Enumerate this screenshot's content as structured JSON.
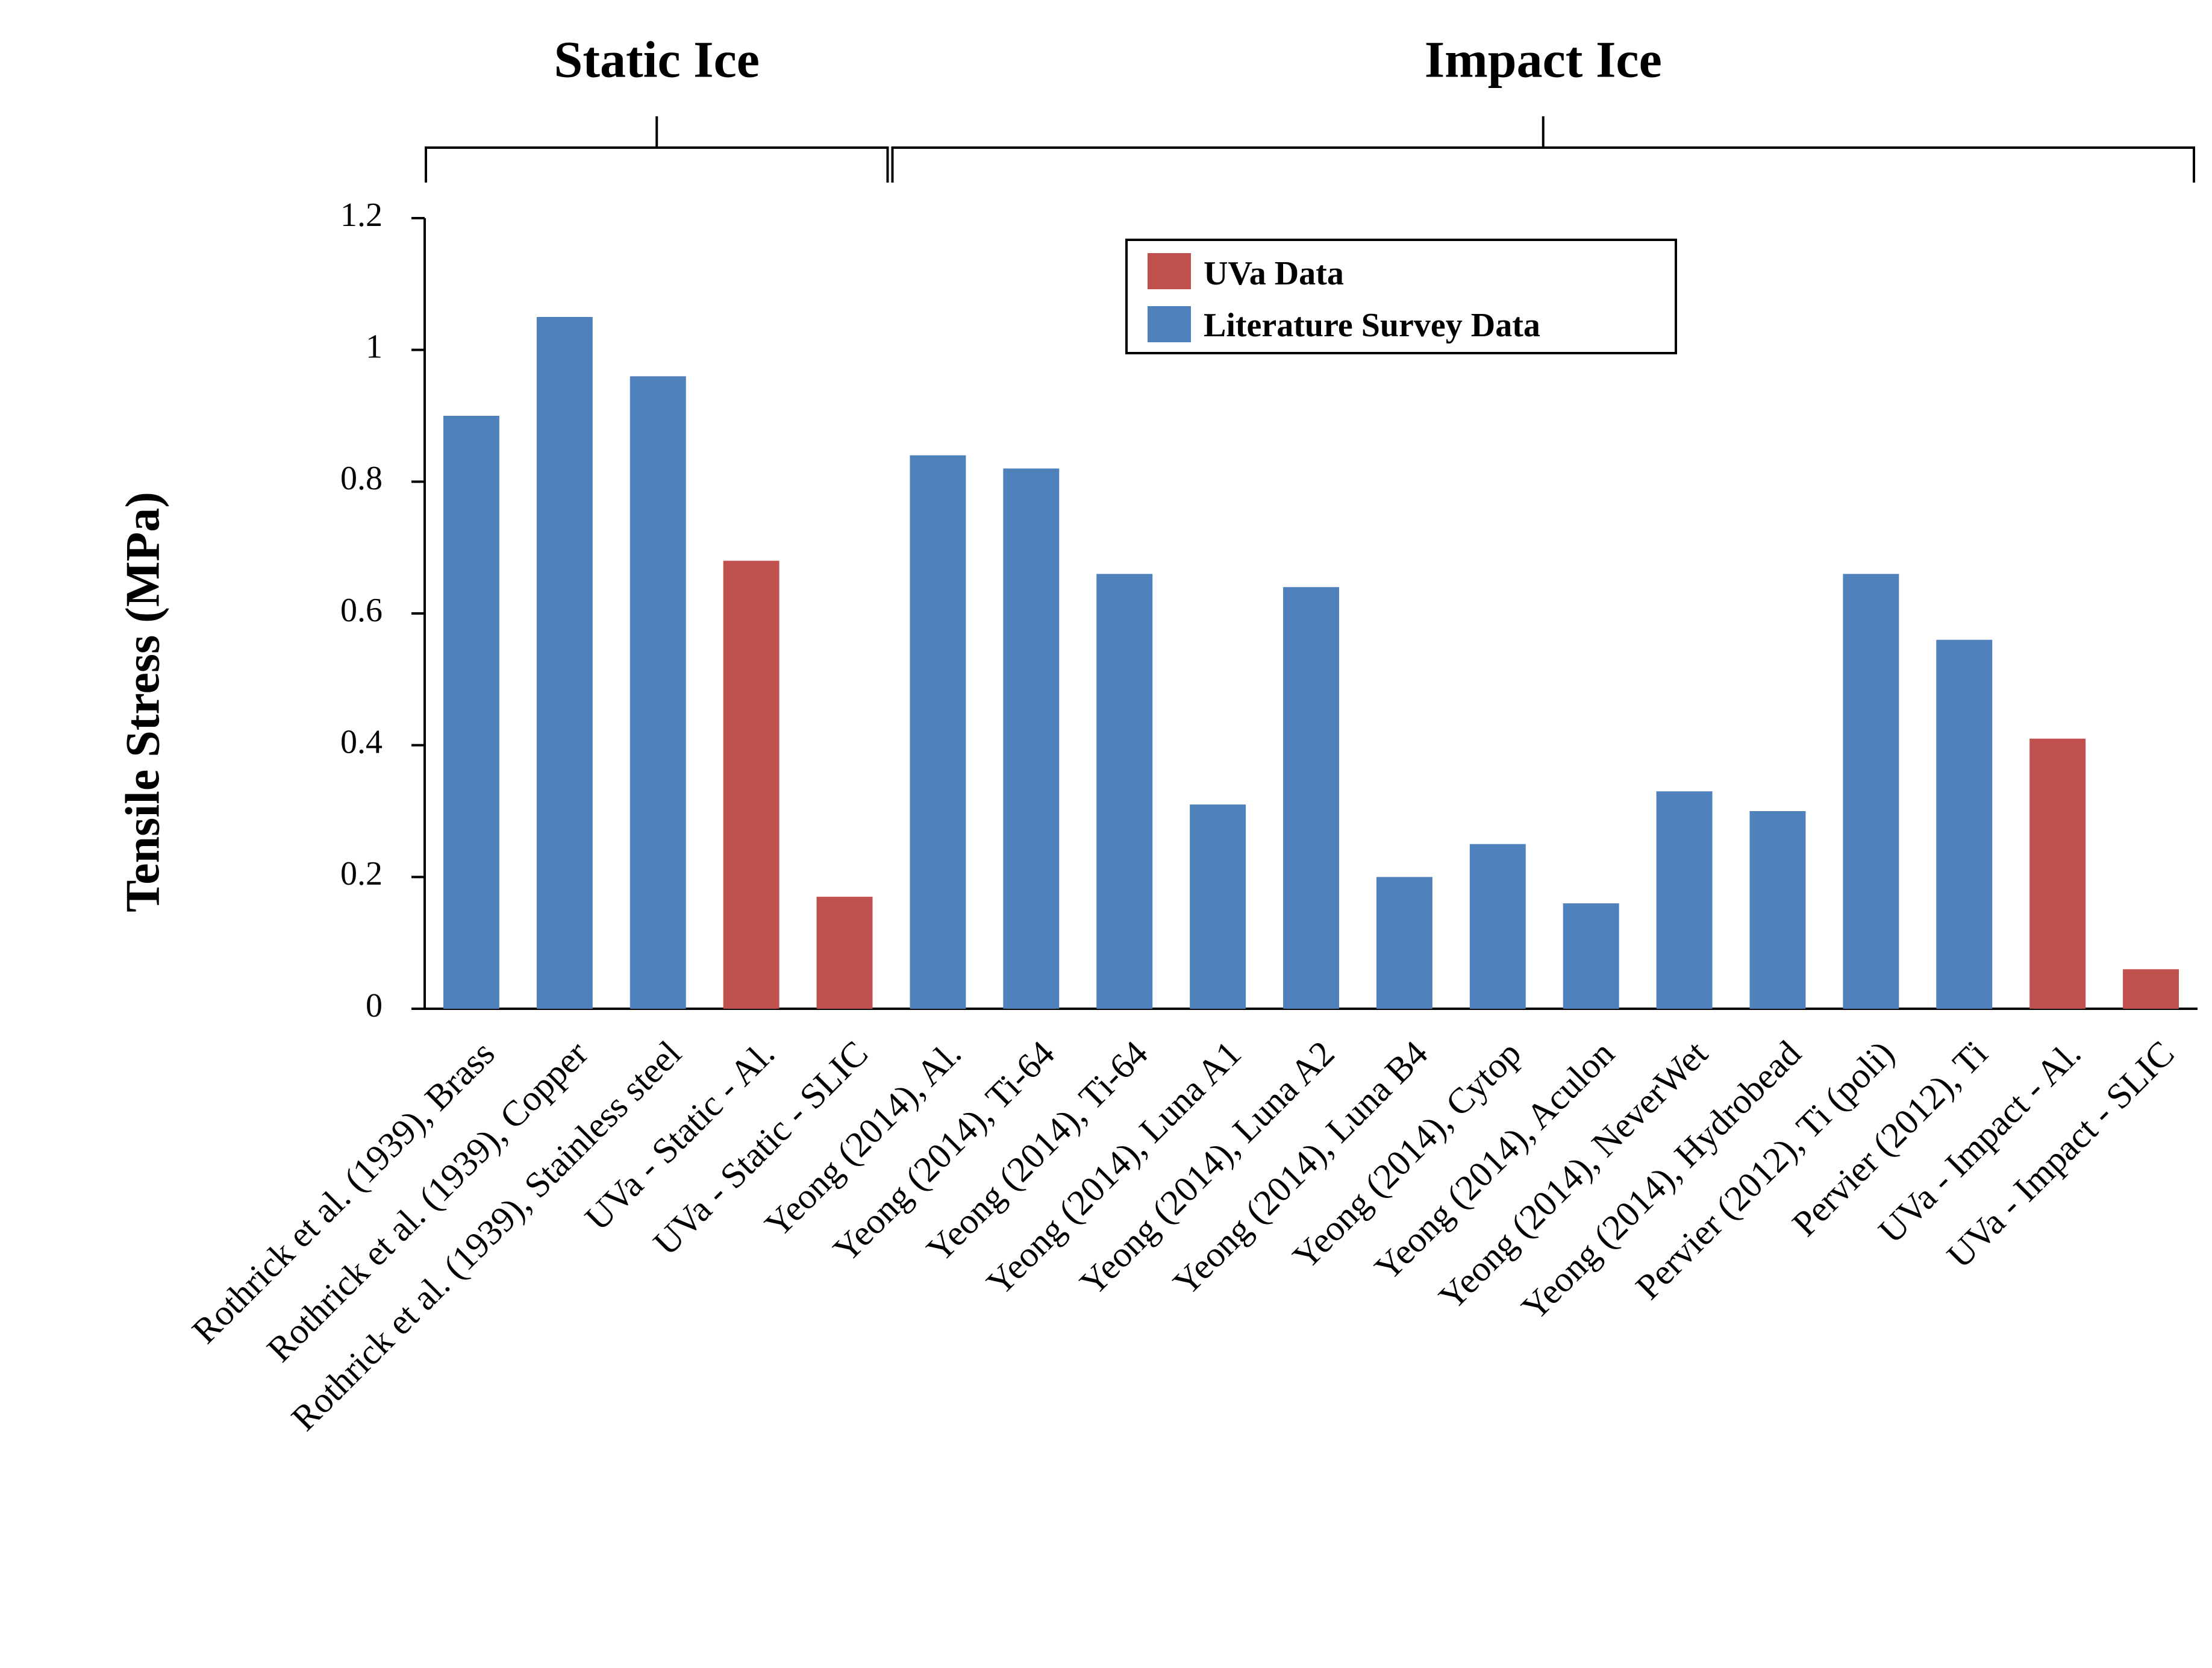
{
  "chart_data": {
    "type": "bar",
    "title": "",
    "xlabel": "",
    "ylabel": "Tensile Stress (MPa)",
    "ylim": [
      0,
      1.2
    ],
    "yticks": [
      0,
      0.2,
      0.4,
      0.6,
      0.8,
      1,
      1.2
    ],
    "ytick_labels": [
      "0",
      "0.2",
      "0.4",
      "0.6",
      "0.8",
      "1",
      "1.2"
    ],
    "grid": false,
    "legend_position": "top-center",
    "colors": {
      "uva": "#c0504d",
      "literature": "#4f81bd"
    },
    "series": [
      {
        "key": "uva",
        "name": "UVa Data"
      },
      {
        "key": "literature",
        "name": "Literature Survey Data"
      }
    ],
    "categories": [
      "Rothrick et al. (1939), Brass",
      "Rothrick et al. (1939), Copper",
      "Rothrick et al. (1939), Stainless steel",
      "UVa - Static - Al.",
      "UVa - Static - SLIC",
      "Yeong (2014), Al.",
      "Yeong (2014), Ti-64",
      "Yeong (2014), Ti-64",
      "Yeong (2014), Luna A1",
      "Yeong (2014), Luna A2",
      "Yeong (2014), Luna B4",
      "Yeong (2014), Cytop",
      "Yeong (2014), Aculon",
      "Yeong (2014), NeverWet",
      "Yeong (2014), Hydrobead",
      "Pervier (2012), Ti (poli)",
      "Pervier (2012), Ti",
      "UVa - Impact - Al.",
      "UVa - Impact - SLIC"
    ],
    "values": [
      0.9,
      1.05,
      0.96,
      0.68,
      0.17,
      0.84,
      0.82,
      0.66,
      0.31,
      0.64,
      0.2,
      0.25,
      0.16,
      0.33,
      0.3,
      0.66,
      0.56,
      0.41,
      0.06
    ],
    "bar_series": [
      "literature",
      "literature",
      "literature",
      "uva",
      "uva",
      "literature",
      "literature",
      "literature",
      "literature",
      "literature",
      "literature",
      "literature",
      "literature",
      "literature",
      "literature",
      "literature",
      "literature",
      "uva",
      "uva"
    ],
    "groups": [
      {
        "label": "Static Ice",
        "first_index": 0,
        "last_index": 4
      },
      {
        "label": "Impact Ice",
        "first_index": 5,
        "last_index": 18
      }
    ]
  }
}
